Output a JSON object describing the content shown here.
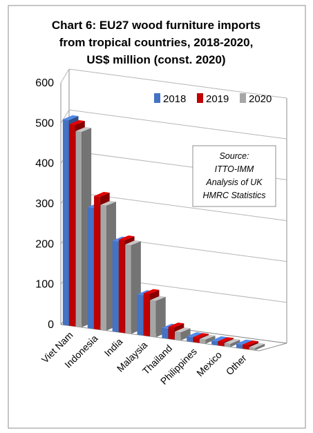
{
  "chart_data": {
    "type": "bar",
    "title_lines": [
      "Chart 6: EU27 wood furniture imports",
      "from tropical countries, 2018-2020,",
      "US$ million (const. 2020)"
    ],
    "categories": [
      "Viet Nam",
      "Indonesia",
      "India",
      "Malaysia",
      "Thailand",
      "Philippines",
      "Mexico",
      "Other"
    ],
    "series": [
      {
        "name": "2018",
        "color": "#4472C4",
        "values": [
          510,
          300,
          225,
          100,
          25,
          12,
          10,
          10
        ]
      },
      {
        "name": "2019",
        "color": "#C00000",
        "values": [
          500,
          330,
          230,
          105,
          30,
          12,
          10,
          10
        ]
      },
      {
        "name": "2020",
        "color": "#A6A6A6",
        "values": [
          485,
          310,
          220,
          90,
          20,
          10,
          8,
          6
        ]
      }
    ],
    "yticks": [
      "0",
      "100",
      "200",
      "300",
      "400",
      "500",
      "600"
    ],
    "ylim": [
      0,
      600
    ],
    "legend": "top-right",
    "annotation_lines": [
      "Source:",
      "ITTO-IMM",
      "Analysis of UK",
      "HMRC Statistics"
    ]
  }
}
